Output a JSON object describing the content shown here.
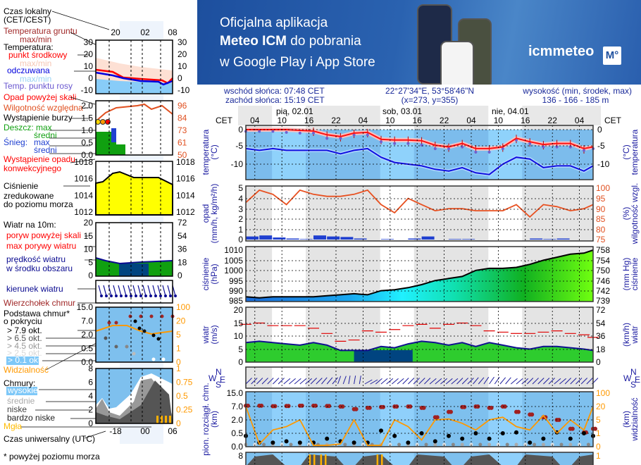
{
  "banner": {
    "line1": "Oficjalna aplikacja",
    "line2_bold": "Meteo ICM",
    "line2_rest": " do pobrania",
    "line3": "w Google Play i App Store",
    "logo": "icmmeteo",
    "logo_badge": "M°"
  },
  "info": {
    "sunrise": "wschód słońca: 07:48 CET",
    "sunset": "zachód słońca: 15:19 CET",
    "coords": "22°27'34\"E, 53°58'46\"N",
    "grid": "(x=273,  y=355)",
    "height_label": "wysokość (min, środek, max)",
    "height_values": "136 - 166 - 185 m"
  },
  "legend": {
    "local_time": "Czas lokalny",
    "local_time2": "(CET/CEST)",
    "ground_temp": "Temperatura gruntu",
    "ground_temp2": "max/min",
    "temperature": "Temperatura:",
    "midpoint": "punkt środkowy",
    "maxmin1": "max/min",
    "feels": "odczuwana",
    "maxmin2": "max/min",
    "dew": "Temp. punktu rosy",
    "precip_over": "Opad powyżej skali",
    "humidity": "Wilgotność względna",
    "storm": "Wystąpienie burzy",
    "rain": "Deszcz: max",
    "rain_avg": "średni",
    "snow": "Śnieg:",
    "snow_max": "max",
    "snow_avg": "średni",
    "convective": "Wystąpienie opadu",
    "convective2": "konwekcyjnego",
    "pressure": "Ciśnienie",
    "pressure2": "zredukowane",
    "pressure3": "do poziomu morza",
    "wind": "Wiatr na 10m:",
    "gust_over": "poryw powyżej skali",
    "gust_max": "max porywy wiatru",
    "wind_speed": "prędkość wiatru",
    "wind_speed2": "w środku obszaru",
    "wind_dir": "kierunek wiatru",
    "cloud_top": "Wierzchołek chmur",
    "cloud_base": "Podstawa chmur*",
    "cloud_base2": "o pokryciu",
    "okt79": "> 7.9 okt.",
    "okt65": "> 6.5 okt.",
    "okt45": "> 4.5 okt.",
    "okt25": "> 2.5 okt.",
    "okt01": "> 0.1 okt.",
    "visibility": "Widzialność",
    "clouds": "Chmury:",
    "high": "wysokie",
    "mid": "średnie",
    "low": "niske",
    "vlow": "bardzo niske",
    "fog": "Mgła",
    "utc": "Czas uniwersalny (UTC)",
    "footnote": "* powyżej poziomu morza",
    "top_ticks": [
      "20",
      "02",
      "08"
    ],
    "bottom_ticks": [
      "-18",
      "00",
      "06"
    ],
    "temp_ticks": [
      "30",
      "20",
      "10",
      "0",
      "-10"
    ],
    "precip_ticks": [
      "2.0",
      "1.5",
      "1.0",
      "0.5",
      "0.0"
    ],
    "hum_ticks": [
      "96",
      "84",
      "73",
      "61",
      "50"
    ],
    "pres_ticks": [
      "1018",
      "1016",
      "1014",
      "1012"
    ],
    "wind_ticks": [
      "20",
      "15",
      "10",
      "5",
      "0"
    ],
    "windkmh_ticks": [
      "72",
      "54",
      "36",
      "18",
      "0"
    ],
    "base_ticks": [
      "15.0",
      "7.0",
      "2.0",
      "0.5",
      "0.0"
    ],
    "vis_ticks": [
      "100",
      "20",
      "5",
      "1",
      "0"
    ],
    "cloud_ticks": [
      "8",
      "6",
      "4",
      "2",
      "0"
    ],
    "cover_ticks": [
      "1",
      "0.75",
      "0.5",
      "0.25",
      "0"
    ]
  },
  "main": {
    "cet": "CET",
    "days": [
      "pią, 02.01",
      "sob, 03.01",
      "nie, 04.01"
    ],
    "hours": [
      "04",
      "10",
      "16",
      "22",
      "04",
      "10",
      "16",
      "22",
      "04",
      "10",
      "16",
      "22",
      "04"
    ],
    "temp_label": "temperatura",
    "temp_unit": "(°C)",
    "temp_ticks": [
      "0",
      "-5",
      "-10"
    ],
    "precip_label": "opad",
    "precip_unit": "(mm/h, kg/m²/h)",
    "precip_ticks": [
      "5",
      "4",
      "3",
      "2",
      "1",
      "0"
    ],
    "hum_label": "wilgotność wzgl.",
    "hum_unit": "(%)",
    "hum_ticks": [
      "100",
      "95",
      "90",
      "85",
      "80",
      "75"
    ],
    "pres_label": "ciśnienie",
    "pres_unit": "(hPa)",
    "pres_ticks": [
      "1010",
      "1005",
      "1000",
      "995",
      "990",
      "985"
    ],
    "presmm_unit": "(mm Hg)",
    "presmm_ticks": [
      "758",
      "754",
      "750",
      "746",
      "742",
      "739"
    ],
    "wind_label": "wiatr",
    "wind_unit": "(m/s)",
    "wind_ticks": [
      "20",
      "15",
      "10",
      "5",
      "0"
    ],
    "windkmh_unit": "(km/h)",
    "windkmh_ticks": [
      "72",
      "54",
      "36",
      "18",
      "0"
    ],
    "compass": {
      "n": "N",
      "w": "W",
      "e": "E",
      "s": "S"
    },
    "base_label": "pion. rozciągł. chm.",
    "base_unit": "(km)",
    "base_ticks": [
      "15.0",
      "7.0",
      "2.0",
      "0.5",
      "0.0"
    ],
    "vis_label": "widzialność",
    "vis_unit": "(km)",
    "vis_ticks": [
      "100",
      "20",
      "5",
      "1",
      "0"
    ],
    "cloud_top_tick": "8",
    "cover_top_tick": "1"
  },
  "colors": {
    "temp": "#ff1010",
    "feels": "#1010e0",
    "dew": "#7060d0",
    "humidity": "#e85020",
    "precip": "#2040d0",
    "gust": "#e00000",
    "wind": "#2ecc2e",
    "wind_line": "#101090",
    "visibility": "#ff9900",
    "cloud_top": "#a02020",
    "banner": "#1d4f9e"
  },
  "chart_data": {
    "type": "line",
    "time_start": "02.01 02:00 CET",
    "step_hours": 3,
    "temperature": [
      0,
      0,
      0,
      0,
      -0.2,
      -0.4,
      -1.5,
      -2,
      -1,
      -0.8,
      -2.8,
      -3,
      -3,
      -3.2,
      -4.5,
      -5,
      -4,
      -5.5,
      -5.5,
      -5,
      -2.5,
      -3.5,
      -4.3,
      -4,
      -4,
      -5.5,
      -5
    ],
    "feels_like": [
      -5.5,
      -6,
      -5.5,
      -6,
      -6,
      -6,
      -6,
      -7,
      -6,
      -5.5,
      -8,
      -9.5,
      -10,
      -10.5,
      -11.5,
      -12,
      -11,
      -12.5,
      -13,
      -10,
      -8,
      -8.5,
      -11,
      -10.5,
      -10.5,
      -12,
      -10.5
    ],
    "dew_point": [
      -0.5,
      -0.5,
      -0.5,
      -0.8,
      -1,
      -1,
      -2.5,
      -2.5,
      -1.5,
      -1.5,
      -3.5,
      -4,
      -4,
      -4.5,
      -5.5,
      -5.5,
      -5,
      -6.5,
      -6.5,
      -5.5,
      -3,
      -4,
      -5,
      -5,
      -5,
      -6,
      -5.5
    ],
    "precip": [
      0.3,
      0.4,
      0.2,
      0.1,
      0.05,
      0.4,
      0.3,
      0.25,
      0.1,
      0,
      0.05,
      0,
      0.1,
      0.3,
      0,
      0.05,
      0.05,
      0,
      0,
      0,
      0,
      0.1,
      0.05,
      0.1,
      0,
      0,
      0
    ],
    "humidity": [
      93,
      99,
      97,
      92,
      99,
      97,
      96,
      96,
      97,
      99,
      92,
      88,
      95,
      92,
      89,
      90,
      90,
      89,
      89,
      89,
      92,
      86,
      92,
      91,
      89,
      90,
      92
    ],
    "pressure": [
      987,
      986.5,
      987,
      987,
      987,
      987,
      987.5,
      988,
      988.5,
      988,
      990,
      990.5,
      991.5,
      993,
      995,
      996,
      997,
      1000,
      1001,
      1001,
      1001.5,
      1003,
      1005,
      1006.5,
      1008,
      1008.5,
      1010
    ],
    "wind": [
      7.5,
      8,
      7.5,
      7,
      6.5,
      7.5,
      6.5,
      4.5,
      4.5,
      4.5,
      6,
      5.5,
      7,
      8,
      7.5,
      6.5,
      7.5,
      6,
      7.5,
      6.5,
      5.5,
      5,
      6,
      6,
      5.5,
      5,
      4.5
    ],
    "gust": [
      14.5,
      15,
      14,
      14,
      14,
      13,
      11,
      8,
      8.5,
      12,
      11.5,
      12.5,
      14,
      14.5,
      13,
      14.5,
      15,
      14,
      12,
      11.5,
      11,
      11,
      11.5,
      12,
      11,
      10.5,
      9.5
    ],
    "wind_dir_deg": [
      225,
      225,
      225,
      230,
      230,
      225,
      220,
      200,
      190,
      240,
      230,
      230,
      225,
      225,
      230,
      230,
      225,
      220,
      215,
      220,
      230,
      225,
      225,
      230,
      225,
      225,
      225
    ],
    "visibility_km": [
      20,
      0.2,
      2,
      3,
      5,
      0.1,
      0.1,
      0.2,
      5,
      0.1,
      0.1,
      5,
      3,
      0.5,
      5,
      6,
      4,
      2,
      5,
      8,
      3,
      2,
      10,
      1,
      5,
      2,
      20
    ],
    "cloud_top_km": [
      7.5,
      7.5,
      7.2,
      7.3,
      7.5,
      7.5,
      7.3,
      7,
      6,
      6.5,
      6.8,
      7,
      7,
      6.5,
      3,
      5,
      6.8,
      7,
      6.5,
      7,
      5,
      4,
      3,
      2,
      1,
      0.6,
      1
    ],
    "cloud_base_km": [
      0.4,
      0.15,
      0.15,
      0.2,
      0.15,
      0.15,
      0.3,
      0.2,
      0.15,
      0.15,
      0.8,
      0.4,
      0.15,
      0.5,
      0.2,
      0.4,
      0.3,
      0.5,
      0.3,
      0.5,
      0.6,
      0.15,
      0.3,
      0.6,
      0.3,
      0.5,
      0.4
    ]
  }
}
